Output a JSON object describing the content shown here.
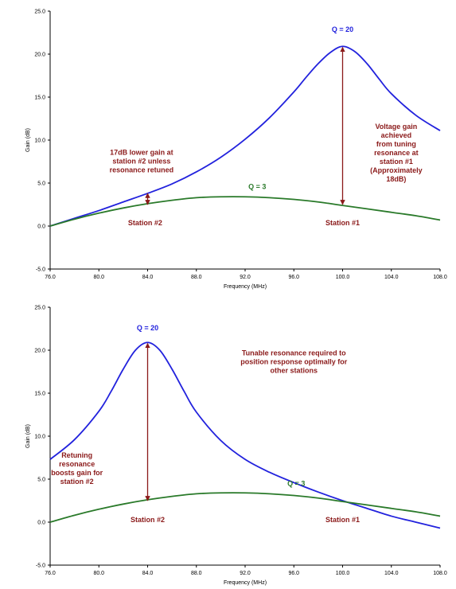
{
  "chart_data": [
    {
      "type": "line",
      "xlabel": "Frequency (MHz)",
      "ylabel": "Gain (dB)",
      "xlim": [
        76.0,
        108.0
      ],
      "ylim": [
        -5.0,
        25.0
      ],
      "x_ticks": [
        "76.0",
        "80.0",
        "84.0",
        "88.0",
        "92.0",
        "96.0",
        "100.0",
        "104.0",
        "108.0"
      ],
      "y_ticks": [
        "-5.0",
        "0.0",
        "5.0",
        "10.0",
        "15.0",
        "20.0",
        "25.0"
      ],
      "grid": false,
      "series": [
        {
          "name": "Q = 20",
          "color": "#2222dd",
          "x": [
            76,
            78,
            80,
            82,
            84,
            86,
            88,
            90,
            92,
            94,
            96,
            97,
            98,
            99,
            100,
            101,
            102,
            103,
            104,
            106,
            108
          ],
          "y": [
            0.0,
            0.9,
            1.8,
            2.8,
            3.8,
            4.9,
            6.3,
            8.0,
            10.1,
            12.6,
            15.6,
            17.3,
            18.9,
            20.2,
            20.9,
            20.3,
            18.9,
            17.1,
            15.4,
            12.9,
            11.1
          ]
        },
        {
          "name": "Q = 3",
          "color": "#2a7a2a",
          "x": [
            76,
            78,
            80,
            82,
            84,
            86,
            88,
            90,
            92,
            94,
            96,
            98,
            100,
            102,
            104,
            106,
            108
          ],
          "y": [
            0.0,
            0.8,
            1.5,
            2.1,
            2.6,
            3.0,
            3.3,
            3.4,
            3.4,
            3.3,
            3.1,
            2.8,
            2.4,
            2.0,
            1.6,
            1.2,
            0.7
          ]
        }
      ],
      "annotations": [
        {
          "text": "Q = 20",
          "color": "#2222dd"
        },
        {
          "text": "Q = 3",
          "color": "#2a7a2a"
        },
        {
          "text": "17dB lower gain at\nstation #2 unless\nresonance retuned",
          "color": "#8b1a1a"
        },
        {
          "text": "Voltage gain\nachieved\nfrom tuning\nresonance at\nstation #1\n(Approximately\n18dB)",
          "color": "#8b1a1a"
        },
        {
          "text": "Station #2",
          "color": "#8b1a1a"
        },
        {
          "text": "Station #1",
          "color": "#8b1a1a"
        }
      ]
    },
    {
      "type": "line",
      "xlabel": "Frequency (MHz)",
      "ylabel": "Gain (dB)",
      "xlim": [
        76.0,
        108.0
      ],
      "ylim": [
        -5.0,
        25.0
      ],
      "x_ticks": [
        "76.0",
        "80.0",
        "84.0",
        "88.0",
        "92.0",
        "96.0",
        "100.0",
        "104.0",
        "108.0"
      ],
      "y_ticks": [
        "-5.0",
        "0.0",
        "5.0",
        "10.0",
        "15.0",
        "20.0",
        "25.0"
      ],
      "grid": false,
      "series": [
        {
          "name": "Q = 20",
          "color": "#2222dd",
          "x": [
            76,
            78,
            80,
            81,
            82,
            83,
            84,
            85,
            86,
            87,
            88,
            90,
            92,
            94,
            96,
            98,
            100,
            102,
            104,
            106,
            108
          ],
          "y": [
            7.3,
            9.6,
            12.9,
            15.2,
            17.8,
            20.0,
            20.9,
            20.0,
            17.8,
            15.2,
            12.8,
            9.5,
            7.3,
            5.8,
            4.6,
            3.5,
            2.5,
            1.6,
            0.7,
            0.0,
            -0.7
          ]
        },
        {
          "name": "Q = 3",
          "color": "#2a7a2a",
          "x": [
            76,
            78,
            80,
            82,
            84,
            86,
            88,
            90,
            92,
            94,
            96,
            98,
            100,
            102,
            104,
            106,
            108
          ],
          "y": [
            0.0,
            0.8,
            1.5,
            2.1,
            2.6,
            3.0,
            3.3,
            3.4,
            3.4,
            3.3,
            3.1,
            2.8,
            2.4,
            2.0,
            1.6,
            1.2,
            0.7
          ]
        }
      ],
      "annotations": [
        {
          "text": "Q = 20",
          "color": "#2222dd"
        },
        {
          "text": "Q = 3",
          "color": "#2a7a2a"
        },
        {
          "text": "Tunable resonance required to\nposition response optimally for\nother stations",
          "color": "#8b1a1a"
        },
        {
          "text": "Retuning\nresonance\nboosts gain for\nstation #2",
          "color": "#8b1a1a"
        },
        {
          "text": "Station #2",
          "color": "#8b1a1a"
        },
        {
          "text": "Station #1",
          "color": "#8b1a1a"
        }
      ]
    }
  ]
}
